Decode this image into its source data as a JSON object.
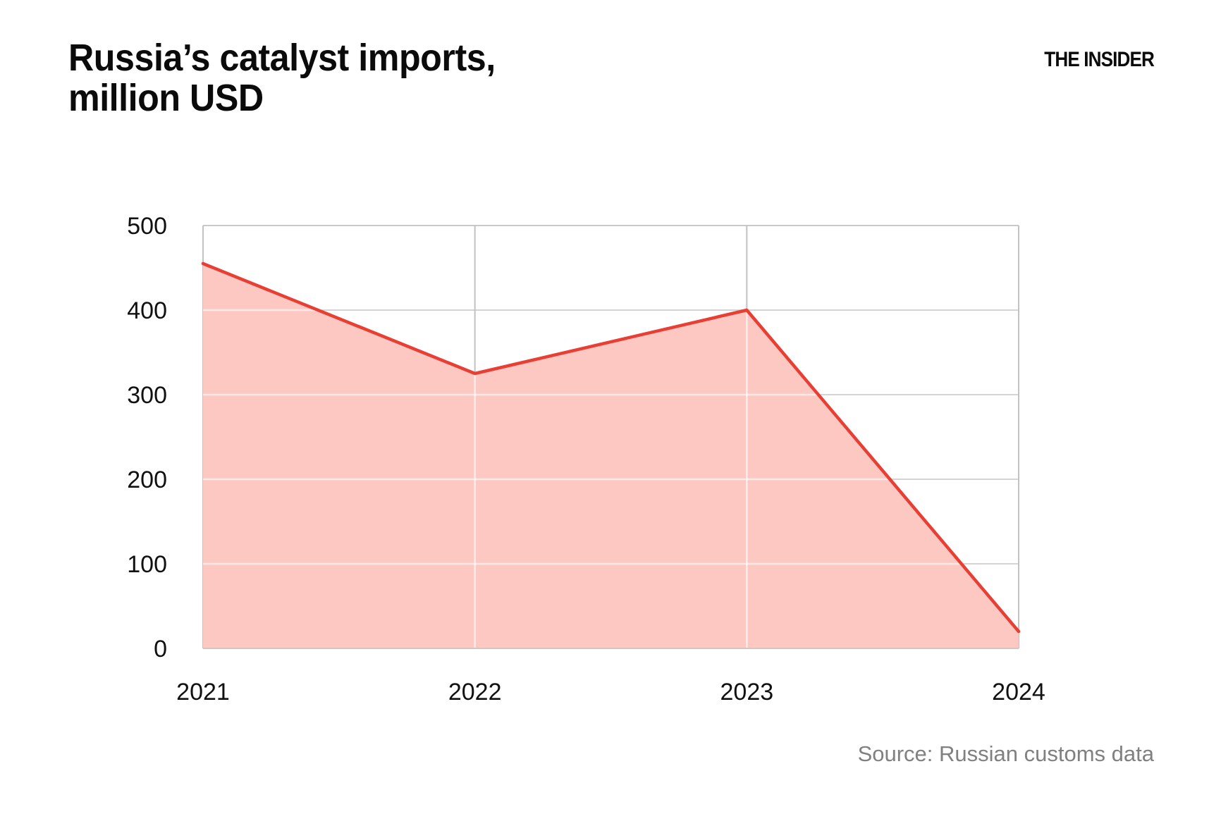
{
  "header": {
    "title": "Russia’s catalyst imports,\nmillion USD",
    "logo": "THE INSIDER"
  },
  "footer": {
    "source": "Source: Russian customs data"
  },
  "chart_data": {
    "type": "area",
    "title": "Russia’s catalyst imports, million USD",
    "categories": [
      "2021",
      "2022",
      "2023",
      "2024"
    ],
    "values": [
      455,
      325,
      400,
      20
    ],
    "xlabel": "",
    "ylabel": "",
    "ylim": [
      0,
      500
    ],
    "yticks": [
      0,
      100,
      200,
      300,
      400,
      500
    ],
    "grid": true,
    "legend": "none",
    "line_color": "#e93e33",
    "fill_color": "#fdc8c2",
    "grid_color_h": "#d4d4d4",
    "grid_color_v": "#c2c2c2",
    "border_color": "#c9c9c9",
    "inner_grid_overlay": "rgba(255,255,255,0.62)",
    "tick_color": "#111111"
  }
}
